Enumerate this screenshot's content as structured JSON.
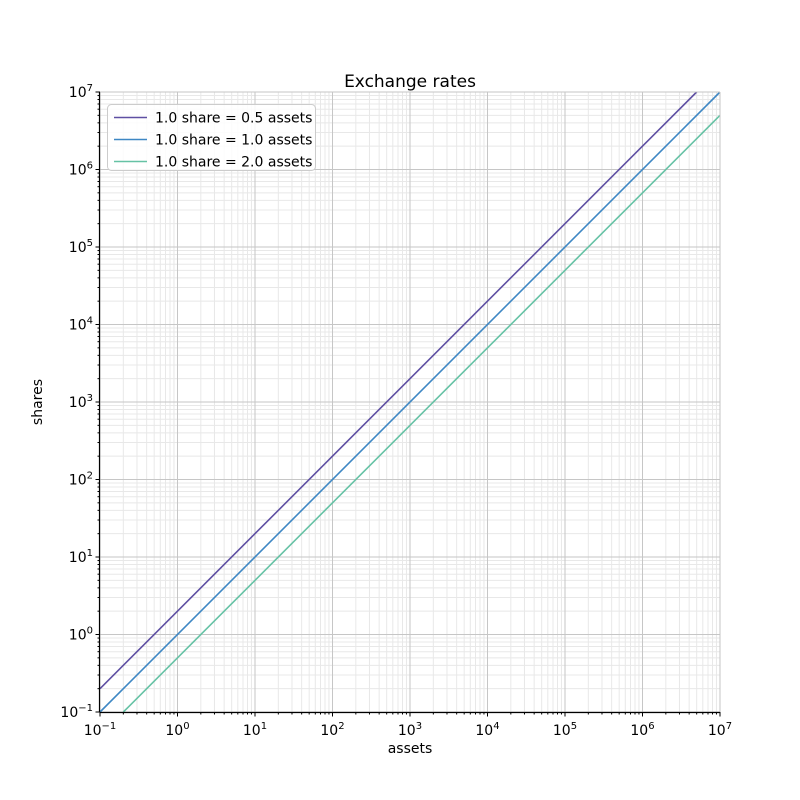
{
  "figure": {
    "background": "#ffffff"
  },
  "chart_data": {
    "type": "line",
    "title": "Exchange rates",
    "xlabel": "assets",
    "ylabel": "shares",
    "xscale": "log",
    "yscale": "log",
    "xlim": [
      0.1,
      10000000
    ],
    "ylim": [
      0.1,
      10000000
    ],
    "grid": "both",
    "legend_position": "upper left",
    "x_tick_exponents": [
      -1,
      0,
      1,
      2,
      3,
      4,
      5,
      6,
      7
    ],
    "y_tick_exponents": [
      -1,
      0,
      1,
      2,
      3,
      4,
      5,
      6,
      7
    ],
    "series": [
      {
        "name": "1.0 share = 0.5 assets",
        "color": "#5e4fa2",
        "assets_per_share": 0.5,
        "relation": "shares = assets / 0.5",
        "sample_points": [
          [
            0.1,
            0.2
          ],
          [
            1,
            2
          ],
          [
            100,
            200
          ],
          [
            10000,
            20000
          ],
          [
            5000000,
            10000000
          ]
        ]
      },
      {
        "name": "1.0 share = 1.0 assets",
        "color": "#3e87c4",
        "assets_per_share": 1.0,
        "relation": "shares = assets / 1.0",
        "sample_points": [
          [
            0.1,
            0.1
          ],
          [
            1,
            1
          ],
          [
            100,
            100
          ],
          [
            10000,
            10000
          ],
          [
            10000000,
            10000000
          ]
        ]
      },
      {
        "name": "1.0 share = 2.0 assets",
        "color": "#66c2a5",
        "assets_per_share": 2.0,
        "relation": "shares = assets / 2.0",
        "sample_points": [
          [
            0.2,
            0.1
          ],
          [
            1,
            0.5
          ],
          [
            100,
            50
          ],
          [
            10000,
            5000
          ],
          [
            10000000,
            5000000
          ]
        ]
      }
    ],
    "colors": {
      "major_grid": "#c6c6c6",
      "minor_grid": "#e8e8e8",
      "spine": "#000000",
      "edge_grid": "#c6c6c6",
      "tick": "#000000",
      "text": "#000000",
      "legend_border": "#cccccc",
      "legend_background": "#ffffff"
    }
  }
}
